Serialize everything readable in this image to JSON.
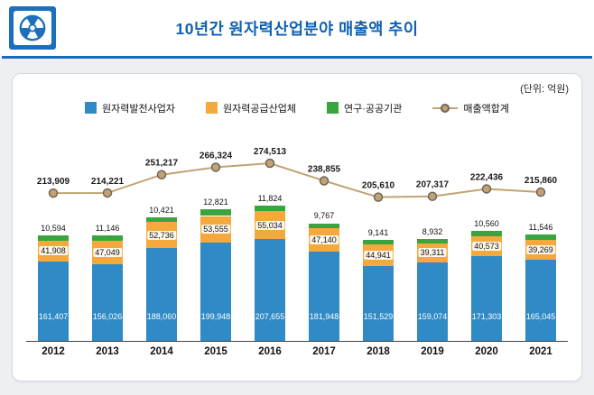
{
  "header": {
    "title": "10년간 원자력산업분야 매출액 추이",
    "accent_color": "#1a6bbf",
    "icon": "radiation-icon"
  },
  "chart": {
    "unit_label": "(단위: 억원)"
  },
  "chart_data": {
    "type": "bar",
    "stacked": true,
    "title": "10년간 원자력산업분야 매출액 추이",
    "unit": "억원",
    "grid": false,
    "legend_position": "top",
    "value_labels": true,
    "ylim": [
      0,
      300000
    ],
    "categories": [
      "2012",
      "2013",
      "2014",
      "2015",
      "2016",
      "2017",
      "2018",
      "2019",
      "2020",
      "2021"
    ],
    "series": [
      {
        "name": "원자력발전사업자",
        "color": "#2f8ac5",
        "values": [
          161407,
          156026,
          188060,
          199948,
          207655,
          181948,
          151529,
          159074,
          171303,
          165045
        ]
      },
      {
        "name": "원자력공급산업체",
        "color": "#f5a83b",
        "values": [
          41908,
          47049,
          52736,
          53555,
          55034,
          47140,
          44941,
          39311,
          40573,
          39269
        ]
      },
      {
        "name": "연구·공공기관",
        "color": "#3aa53f",
        "values": [
          10594,
          11146,
          10421,
          12821,
          11824,
          9767,
          9141,
          8932,
          10560,
          11546
        ]
      }
    ],
    "line_series": {
      "name": "매출액합계",
      "color": "#c2a274",
      "marker_stroke": "#6e6658",
      "values": [
        213909,
        214221,
        251217,
        266324,
        274513,
        238855,
        205610,
        207317,
        222436,
        215860
      ]
    }
  }
}
